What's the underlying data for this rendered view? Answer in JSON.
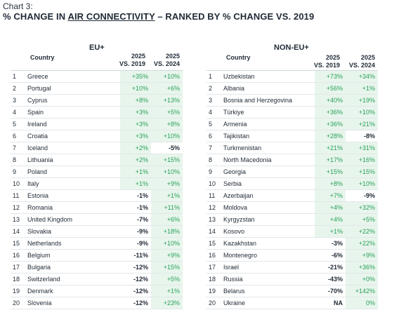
{
  "chart_label": "Chart 3:",
  "title_prefix": "% CHANGE IN ",
  "title_underlined": "AIR CONNECTIVITY",
  "title_suffix": " – RANKED BY % CHANGE VS. 2019",
  "eu": {
    "group_label": "EU+",
    "country_header": "Country",
    "col1_header_line1": "2025",
    "col1_header_line2": "VS. 2019",
    "col2_header_line1": "2025",
    "col2_header_line2": "VS. 2024",
    "rows": [
      {
        "rank": "1",
        "country": "Greece",
        "v2019": "+35%",
        "v2024": "+10%"
      },
      {
        "rank": "2",
        "country": "Portugal",
        "v2019": "+10%",
        "v2024": "+6%"
      },
      {
        "rank": "3",
        "country": "Cyprus",
        "v2019": "+8%",
        "v2024": "+13%"
      },
      {
        "rank": "4",
        "country": "Spain",
        "v2019": "+3%",
        "v2024": "+5%"
      },
      {
        "rank": "5",
        "country": "Ireland",
        "v2019": "+3%",
        "v2024": "+8%"
      },
      {
        "rank": "6",
        "country": "Croatia",
        "v2019": "+3%",
        "v2024": "+10%"
      },
      {
        "rank": "7",
        "country": "Iceland",
        "v2019": "+2%",
        "v2024": "-5%"
      },
      {
        "rank": "8",
        "country": "Lithuania",
        "v2019": "+2%",
        "v2024": "+15%"
      },
      {
        "rank": "9",
        "country": "Poland",
        "v2019": "+1%",
        "v2024": "+10%"
      },
      {
        "rank": "10",
        "country": "Italy",
        "v2019": "+1%",
        "v2024": "+9%"
      },
      {
        "rank": "11",
        "country": "Estonia",
        "v2019": "-1%",
        "v2024": "+1%"
      },
      {
        "rank": "12",
        "country": "Romania",
        "v2019": "-1%",
        "v2024": "+11%"
      },
      {
        "rank": "13",
        "country": "United Kingdom",
        "v2019": "-7%",
        "v2024": "+6%"
      },
      {
        "rank": "14",
        "country": "Slovakia",
        "v2019": "-9%",
        "v2024": "+18%"
      },
      {
        "rank": "15",
        "country": "Netherlands",
        "v2019": "-9%",
        "v2024": "+10%"
      },
      {
        "rank": "16",
        "country": "Belgium",
        "v2019": "-11%",
        "v2024": "+9%"
      },
      {
        "rank": "17",
        "country": "Bulgaria",
        "v2019": "-12%",
        "v2024": "+15%"
      },
      {
        "rank": "18",
        "country": "Switzerland",
        "v2019": "-12%",
        "v2024": "+5%"
      },
      {
        "rank": "19",
        "country": "Denmark",
        "v2019": "-12%",
        "v2024": "+1%"
      },
      {
        "rank": "20",
        "country": "Slovenia",
        "v2019": "-12%",
        "v2024": "+23%"
      }
    ]
  },
  "noneu": {
    "group_label": "NON-EU+",
    "country_header": "Country",
    "col1_header_line1": "2025",
    "col1_header_line2": "VS. 2019",
    "col2_header_line1": "2025",
    "col2_header_line2": "VS. 2024",
    "rows": [
      {
        "rank": "1",
        "country": "Uzbekistan",
        "v2019": "+73%",
        "v2024": "+34%"
      },
      {
        "rank": "2",
        "country": "Albania",
        "v2019": "+56%",
        "v2024": "+1%"
      },
      {
        "rank": "3",
        "country": "Bosnia and Herzegovina",
        "v2019": "+40%",
        "v2024": "+19%"
      },
      {
        "rank": "4",
        "country": "Türkiye",
        "v2019": "+36%",
        "v2024": "+10%"
      },
      {
        "rank": "5",
        "country": "Armenia",
        "v2019": "+36%",
        "v2024": "+21%"
      },
      {
        "rank": "6",
        "country": "Tajikistan",
        "v2019": "+28%",
        "v2024": "-8%"
      },
      {
        "rank": "7",
        "country": "Turkmenistan",
        "v2019": "+21%",
        "v2024": "+31%"
      },
      {
        "rank": "8",
        "country": "North Macedonia",
        "v2019": "+17%",
        "v2024": "+16%"
      },
      {
        "rank": "9",
        "country": "Georgia",
        "v2019": "+15%",
        "v2024": "+15%"
      },
      {
        "rank": "10",
        "country": "Serbia",
        "v2019": "+8%",
        "v2024": "+10%"
      },
      {
        "rank": "11",
        "country": "Azerbaijan",
        "v2019": "+7%",
        "v2024": "-9%"
      },
      {
        "rank": "12",
        "country": "Moldova",
        "v2019": "+4%",
        "v2024": "+32%"
      },
      {
        "rank": "13",
        "country": "Kyrgyzstan",
        "v2019": "+4%",
        "v2024": "+5%"
      },
      {
        "rank": "14",
        "country": "Kosovo",
        "v2019": "+1%",
        "v2024": "+22%"
      },
      {
        "rank": "15",
        "country": "Kazakhstan",
        "v2019": "-3%",
        "v2024": "+22%"
      },
      {
        "rank": "16",
        "country": "Montenegro",
        "v2019": "-6%",
        "v2024": "+9%"
      },
      {
        "rank": "17",
        "country": "Israel",
        "v2019": "-21%",
        "v2024": "+36%"
      },
      {
        "rank": "18",
        "country": "Russia",
        "v2019": "-43%",
        "v2024": "+0%"
      },
      {
        "rank": "19",
        "country": "Belarus",
        "v2019": "-70%",
        "v2024": "+142%"
      },
      {
        "rank": "20",
        "country": "Ukraine",
        "v2019": "NA",
        "v2024": "0%"
      }
    ]
  },
  "colors": {
    "positive_text": "#27a15a",
    "positive_bg": "#e8f5ec",
    "negative_text": "#1f2a36"
  }
}
